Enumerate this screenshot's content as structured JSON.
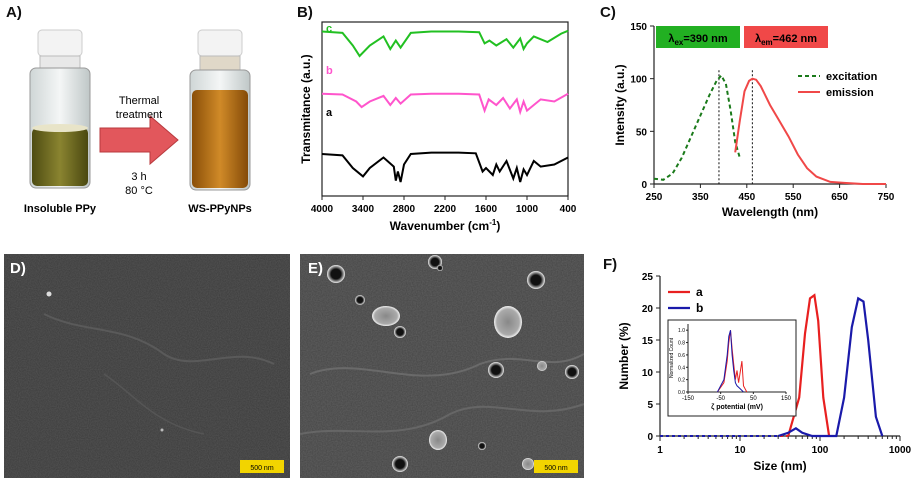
{
  "panel_labels": {
    "a": "A)",
    "b": "B)",
    "c": "C)",
    "d": "D)",
    "e": "E)",
    "f": "F)"
  },
  "panel_a": {
    "arrow_text_1": "Thermal",
    "arrow_text_2": "treatment",
    "time": "3 h",
    "temp": "80 °C",
    "left_label": "Insoluble PPy",
    "right_label": "WS-PPyNPs",
    "colors": {
      "arrow": "#e2575c",
      "left_liquid": "#6f6a1f",
      "right_liquid": "#b8701a"
    }
  },
  "panel_d": {
    "scale": "500 nm"
  },
  "panel_e": {
    "scale": "500 nm"
  },
  "chart_data": [
    {
      "type": "line",
      "panel": "B",
      "xlabel": "Wavenumber (cm",
      "xlabel_sup": "-1",
      "xlabel_end": ")",
      "ylabel": "Transmitance (a.u.)",
      "xlim": [
        4000,
        400
      ],
      "xticks": [
        "4000",
        "3400",
        "2800",
        "2200",
        "1600",
        "1000",
        "400"
      ],
      "series": [
        {
          "name": "c",
          "color": "#22c022",
          "x": [
            4000,
            3700,
            3550,
            3450,
            3300,
            3100,
            3000,
            2920,
            2850,
            2700,
            2400,
            2000,
            1700,
            1620,
            1550,
            1450,
            1300,
            1200,
            1100,
            1050,
            1000,
            900,
            700,
            500,
            400
          ],
          "y": [
            95,
            93,
            75,
            60,
            75,
            88,
            70,
            82,
            72,
            93,
            95,
            95,
            94,
            78,
            82,
            75,
            84,
            72,
            85,
            70,
            78,
            88,
            80,
            92,
            96
          ]
        },
        {
          "name": "b",
          "color": "#ff55cc",
          "x": [
            4000,
            3700,
            3500,
            3420,
            3300,
            3100,
            3000,
            2920,
            2850,
            2700,
            2400,
            2000,
            1700,
            1620,
            1560,
            1450,
            1350,
            1250,
            1150,
            1100,
            1050,
            1000,
            900,
            800,
            600,
            400
          ],
          "y": [
            66,
            65,
            55,
            47,
            55,
            63,
            50,
            60,
            52,
            65,
            66,
            66,
            65,
            42,
            58,
            50,
            60,
            45,
            58,
            40,
            55,
            42,
            50,
            58,
            55,
            66
          ]
        },
        {
          "name": "a",
          "color": "#000000",
          "x": [
            4000,
            3700,
            3550,
            3400,
            3300,
            3100,
            2950,
            2920,
            2890,
            2850,
            2800,
            2700,
            2400,
            2000,
            1750,
            1650,
            1600,
            1500,
            1450,
            1400,
            1300,
            1200,
            1150,
            1100,
            1050,
            1000,
            900,
            800,
            600,
            400
          ],
          "y": [
            40,
            38,
            20,
            8,
            20,
            35,
            22,
            2,
            15,
            0,
            25,
            40,
            42,
            42,
            41,
            15,
            20,
            10,
            25,
            15,
            30,
            5,
            20,
            0,
            18,
            10,
            30,
            22,
            25,
            35
          ]
        }
      ]
    },
    {
      "type": "line",
      "panel": "C",
      "xlabel": "Wavelength (nm)",
      "ylabel": "Intensity (a.u.)",
      "xlim": [
        250,
        750
      ],
      "ylim": [
        0,
        150
      ],
      "xticks": [
        "250",
        "350",
        "450",
        "550",
        "650",
        "750"
      ],
      "yticks": [
        "0",
        "50",
        "100",
        "150"
      ],
      "ex_box": {
        "label_lambda": "λ",
        "label_sub": "ex",
        "label_val": "=390 nm",
        "color": "#22b022"
      },
      "em_box": {
        "label_lambda": "λ",
        "label_sub": "em",
        "label_val": "=462 nm",
        "color": "#f04848"
      },
      "series": [
        {
          "name": "excitation",
          "color": "#1a7a1a",
          "dashed": true,
          "x": [
            250,
            270,
            290,
            310,
            330,
            350,
            370,
            385,
            395,
            405,
            415,
            425,
            435
          ],
          "y": [
            5,
            4,
            10,
            25,
            45,
            65,
            85,
            98,
            103,
            95,
            70,
            40,
            25
          ]
        },
        {
          "name": "emission",
          "color": "#f04848",
          "dashed": false,
          "x": [
            425,
            435,
            445,
            455,
            462,
            470,
            480,
            500,
            520,
            540,
            560,
            580,
            600,
            630,
            660,
            700,
            750
          ],
          "y": [
            30,
            60,
            88,
            98,
            100,
            99,
            93,
            75,
            60,
            45,
            28,
            15,
            7,
            2,
            1,
            0,
            0
          ]
        }
      ]
    },
    {
      "type": "line",
      "panel": "F",
      "xlabel": "Size (nm)",
      "ylabel": "Number (%)",
      "xlim_log": [
        1,
        1000
      ],
      "ylim": [
        0,
        25
      ],
      "xticks": [
        "1",
        "10",
        "100",
        "1000"
      ],
      "yticks": [
        "0",
        "5",
        "10",
        "15",
        "20",
        "25"
      ],
      "series": [
        {
          "name": "a",
          "color": "#e82020",
          "x": [
            40,
            55,
            65,
            75,
            85,
            95,
            110,
            130
          ],
          "y": [
            0,
            6,
            16,
            21.5,
            22,
            18,
            6,
            0
          ]
        },
        {
          "name": "b",
          "color": "#1a1aaa",
          "x": [
            30,
            40,
            50,
            60,
            80,
            100,
            160,
            200,
            250,
            300,
            350,
            400,
            500,
            600
          ],
          "y": [
            0,
            0.5,
            1.2,
            0.5,
            0,
            0,
            0,
            6,
            17,
            21.5,
            21,
            15,
            3,
            0
          ]
        }
      ],
      "inset": {
        "xlabel": "ζ potential (mV)",
        "ylabel": "Normalized Count",
        "xlim": [
          -150,
          150
        ],
        "ylim": [
          0,
          1.1
        ],
        "xticks": [
          "-150",
          "-50",
          "50",
          "150"
        ],
        "yticks": [
          "0.0",
          "0.2",
          "0.4",
          "0.6",
          "0.8",
          "1.0"
        ],
        "series": [
          {
            "name": "a",
            "color": "#e82020",
            "x": [
              -60,
              -40,
              -30,
              -25,
              -20,
              -15,
              -10,
              -5,
              0,
              5,
              15,
              20,
              30
            ],
            "y": [
              0,
              0.15,
              0.5,
              0.8,
              1.0,
              0.7,
              0.45,
              0.2,
              0.35,
              0.15,
              0.5,
              0.1,
              0
            ]
          },
          {
            "name": "b",
            "color": "#1a1aaa",
            "x": [
              -60,
              -40,
              -30,
              -25,
              -20,
              -15,
              -10,
              -5,
              0,
              10,
              20
            ],
            "y": [
              0,
              0.2,
              0.6,
              0.9,
              1.0,
              0.6,
              0.35,
              0.15,
              0.1,
              0.05,
              0
            ]
          }
        ]
      }
    }
  ]
}
